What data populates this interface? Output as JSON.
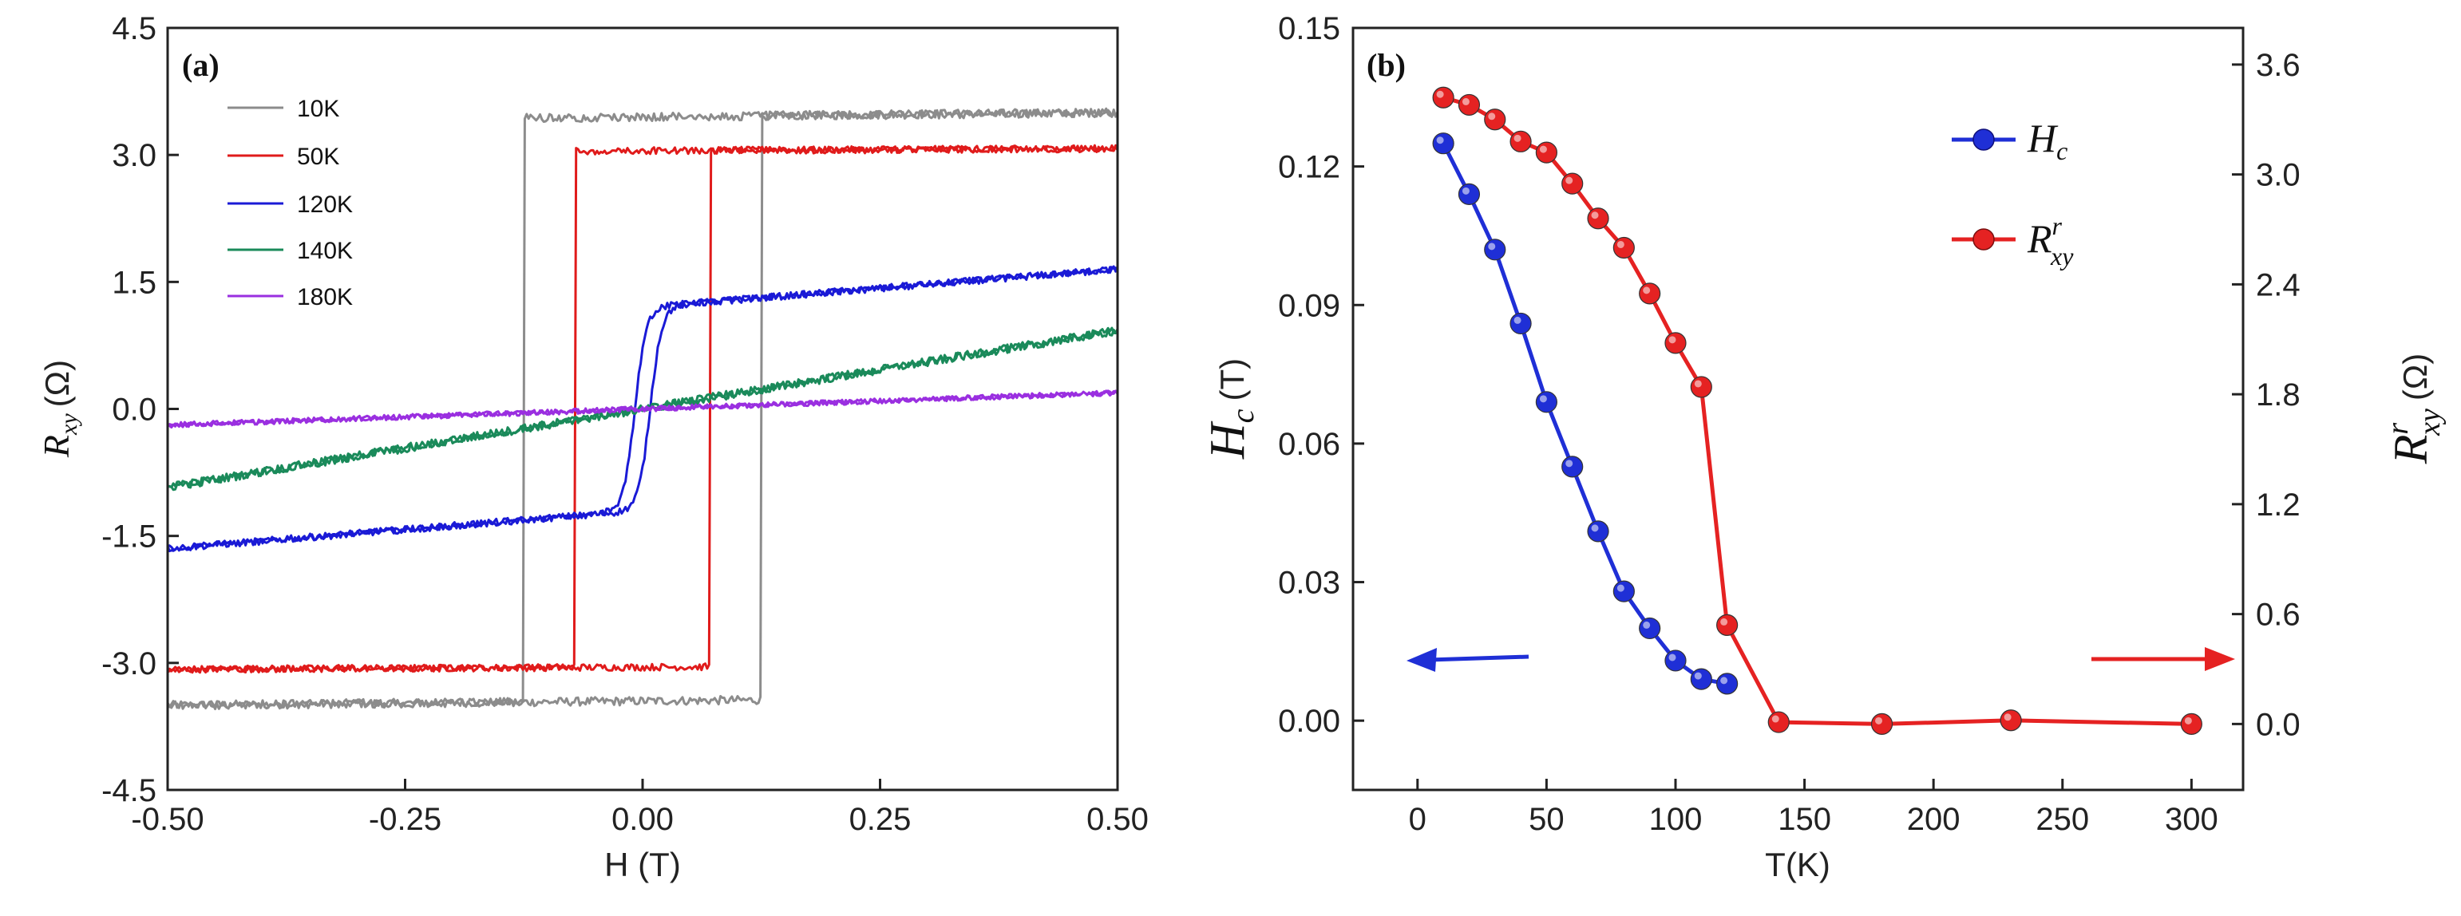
{
  "chart_data": [
    {
      "type": "line",
      "panel_label": "(a)",
      "xlabel": "H (T)",
      "ylabel_main": "R",
      "ylabel_sub": "xy",
      "ylabel_unit": "(Ω)",
      "xlim": [
        -0.5,
        0.5
      ],
      "ylim": [
        -4.5,
        4.5
      ],
      "x_ticks": [
        -0.5,
        -0.25,
        0.0,
        0.25,
        0.5
      ],
      "x_tick_labels": [
        "-0.50",
        "-0.25",
        "0.00",
        "0.25",
        "0.50"
      ],
      "y_ticks": [
        -4.5,
        -3.0,
        -1.5,
        0.0,
        1.5,
        3.0,
        4.5
      ],
      "y_tick_labels": [
        "-4.5",
        "-3.0",
        "-1.5",
        "0.0",
        "1.5",
        "3.0",
        "4.5"
      ],
      "legend_position": "top-left",
      "series": [
        {
          "name": "10K",
          "color": "#8c8c8c",
          "loop": "square",
          "Rs": 3.45,
          "Hc": 0.125,
          "slope": 0.1,
          "noise": 0.05
        },
        {
          "name": "50K",
          "color": "#e01b1b",
          "loop": "square",
          "Rs": 3.05,
          "Hc": 0.07,
          "slope": 0.05,
          "noise": 0.04
        },
        {
          "name": "120K",
          "color": "#1a1ad6",
          "loop": "soft",
          "Rs": 1.2,
          "Hc": 0.008,
          "slope": 0.9,
          "width": 0.012,
          "noise": 0.04
        },
        {
          "name": "140K",
          "color": "#1a8a5a",
          "loop": "linear",
          "slope": 1.85,
          "noise": 0.05
        },
        {
          "name": "180K",
          "color": "#9a2fe0",
          "loop": "linear",
          "slope": 0.38,
          "noise": 0.03
        }
      ]
    },
    {
      "type": "line",
      "panel_label": "(b)",
      "xlabel": "T(K)",
      "ylabel_left_main": "H",
      "ylabel_left_sub": "c",
      "ylabel_left_unit": "(T)",
      "ylabel_right_main": "R",
      "ylabel_right_sup": "r",
      "ylabel_right_sub": "xy",
      "ylabel_right_unit": "(Ω)",
      "xlim": [
        -25,
        320
      ],
      "ylim_left": [
        -0.015,
        0.15
      ],
      "ylim_right": [
        -0.36,
        3.8
      ],
      "x_ticks": [
        0,
        50,
        100,
        150,
        200,
        250,
        300
      ],
      "x_tick_labels": [
        "0",
        "50",
        "100",
        "150",
        "200",
        "250",
        "300"
      ],
      "y_left_ticks": [
        0.0,
        0.03,
        0.06,
        0.09,
        0.12,
        0.15
      ],
      "y_left_tick_labels": [
        "0.00",
        "0.03",
        "0.06",
        "0.09",
        "0.12",
        "0.15"
      ],
      "y_right_ticks": [
        0.0,
        0.6,
        1.2,
        1.8,
        2.4,
        3.0,
        3.6
      ],
      "y_right_tick_labels": [
        "0.0",
        "0.6",
        "1.2",
        "1.8",
        "2.4",
        "3.0",
        "3.6"
      ],
      "legend_position": "top-right",
      "series": [
        {
          "name": "Hc",
          "legend_main": "H",
          "legend_sub": "c",
          "color": "#1f2fd6",
          "axis": "left",
          "x": [
            10,
            20,
            30,
            40,
            50,
            60,
            70,
            80,
            90,
            100,
            110,
            120
          ],
          "y": [
            0.125,
            0.114,
            0.102,
            0.086,
            0.069,
            0.055,
            0.041,
            0.028,
            0.02,
            0.013,
            0.009,
            0.008
          ]
        },
        {
          "name": "Rxy^r",
          "legend_main": "R",
          "legend_sup": "r",
          "legend_sub": "xy",
          "color": "#e52222",
          "axis": "right",
          "x": [
            10,
            20,
            30,
            40,
            50,
            60,
            70,
            80,
            90,
            100,
            110,
            120,
            140,
            180,
            230,
            300
          ],
          "y": [
            3.42,
            3.38,
            3.3,
            3.18,
            3.12,
            2.95,
            2.76,
            2.6,
            2.35,
            2.08,
            1.84,
            0.54,
            0.01,
            0.0,
            0.02,
            0.0
          ]
        }
      ],
      "arrows": [
        {
          "direction": "left",
          "color": "#1f2fd6",
          "points_to_axis": "left"
        },
        {
          "direction": "right",
          "color": "#e52222",
          "points_to_axis": "right"
        }
      ]
    }
  ]
}
